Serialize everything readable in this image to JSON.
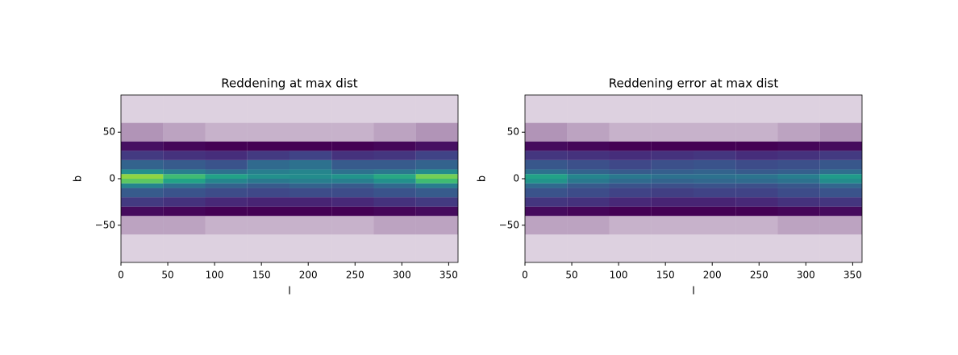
{
  "chart_data": [
    {
      "type": "heatmap",
      "title": "Reddening at max dist",
      "xlabel": "l",
      "ylabel": "b",
      "x": [
        0,
        45,
        90,
        135,
        180,
        225,
        270,
        315,
        360
      ],
      "y": [
        -90,
        -60,
        -40,
        -30,
        -20,
        -10,
        -5,
        0,
        5,
        10,
        20,
        30,
        40,
        60,
        90
      ],
      "values": [
        [
          0.03,
          0.03,
          0.03,
          0.03,
          0.03,
          0.03,
          0.03,
          0.03
        ],
        [
          0.06,
          0.06,
          0.05,
          0.05,
          0.05,
          0.05,
          0.06,
          0.06
        ],
        [
          0.12,
          0.11,
          0.1,
          0.1,
          0.1,
          0.1,
          0.11,
          0.12
        ],
        [
          0.22,
          0.2,
          0.18,
          0.17,
          0.17,
          0.18,
          0.2,
          0.22
        ],
        [
          0.3,
          0.28,
          0.26,
          0.25,
          0.26,
          0.26,
          0.28,
          0.3
        ],
        [
          0.42,
          0.36,
          0.32,
          0.3,
          0.32,
          0.3,
          0.34,
          0.4
        ],
        [
          0.62,
          0.5,
          0.42,
          0.38,
          0.4,
          0.4,
          0.45,
          0.58
        ],
        [
          0.68,
          0.58,
          0.5,
          0.45,
          0.44,
          0.46,
          0.52,
          0.65
        ],
        [
          0.45,
          0.4,
          0.36,
          0.4,
          0.42,
          0.36,
          0.38,
          0.44
        ],
        [
          0.32,
          0.3,
          0.28,
          0.34,
          0.36,
          0.3,
          0.3,
          0.32
        ],
        [
          0.22,
          0.2,
          0.19,
          0.22,
          0.24,
          0.2,
          0.21,
          0.24
        ],
        [
          0.13,
          0.11,
          0.1,
          0.1,
          0.1,
          0.1,
          0.11,
          0.13
        ],
        [
          0.07,
          0.06,
          0.05,
          0.05,
          0.05,
          0.05,
          0.06,
          0.07
        ],
        [
          0.03,
          0.03,
          0.03,
          0.03,
          0.03,
          0.03,
          0.03,
          0.03
        ]
      ],
      "xlim": [
        0,
        360
      ],
      "ylim": [
        -90,
        90
      ],
      "xticks": [
        0,
        50,
        100,
        150,
        200,
        250,
        300,
        350
      ],
      "yticks": [
        {
          "value": -50,
          "label": "−50"
        },
        0,
        50
      ],
      "colormap": "viridis"
    },
    {
      "type": "heatmap",
      "title": "Reddening error at max dist",
      "xlabel": "l",
      "ylabel": "b",
      "x": [
        0,
        45,
        90,
        135,
        180,
        225,
        270,
        315,
        360
      ],
      "y": [
        -90,
        -60,
        -40,
        -30,
        -20,
        -10,
        -5,
        0,
        5,
        10,
        20,
        30,
        40,
        60,
        90
      ],
      "values": [
        [
          0.03,
          0.03,
          0.03,
          0.03,
          0.03,
          0.03,
          0.03,
          0.03
        ],
        [
          0.06,
          0.06,
          0.05,
          0.05,
          0.05,
          0.05,
          0.06,
          0.06
        ],
        [
          0.12,
          0.11,
          0.1,
          0.1,
          0.1,
          0.1,
          0.11,
          0.12
        ],
        [
          0.21,
          0.2,
          0.18,
          0.17,
          0.17,
          0.18,
          0.2,
          0.21
        ],
        [
          0.28,
          0.26,
          0.24,
          0.23,
          0.24,
          0.24,
          0.26,
          0.28
        ],
        [
          0.34,
          0.3,
          0.28,
          0.27,
          0.28,
          0.27,
          0.29,
          0.33
        ],
        [
          0.46,
          0.38,
          0.34,
          0.32,
          0.33,
          0.34,
          0.36,
          0.44
        ],
        [
          0.5,
          0.42,
          0.38,
          0.36,
          0.36,
          0.37,
          0.4,
          0.48
        ],
        [
          0.36,
          0.32,
          0.3,
          0.31,
          0.32,
          0.3,
          0.31,
          0.35
        ],
        [
          0.29,
          0.27,
          0.25,
          0.27,
          0.28,
          0.26,
          0.27,
          0.29
        ],
        [
          0.21,
          0.2,
          0.19,
          0.2,
          0.21,
          0.19,
          0.2,
          0.22
        ],
        [
          0.12,
          0.11,
          0.1,
          0.1,
          0.1,
          0.1,
          0.11,
          0.12
        ],
        [
          0.07,
          0.06,
          0.05,
          0.05,
          0.05,
          0.05,
          0.06,
          0.07
        ],
        [
          0.03,
          0.03,
          0.03,
          0.03,
          0.03,
          0.03,
          0.03,
          0.03
        ]
      ],
      "xlim": [
        0,
        360
      ],
      "ylim": [
        -90,
        90
      ],
      "xticks": [
        0,
        50,
        100,
        150,
        200,
        250,
        300,
        350
      ],
      "yticks": [
        {
          "value": -50,
          "label": "−50"
        },
        0,
        50
      ],
      "colormap": "viridis"
    }
  ]
}
